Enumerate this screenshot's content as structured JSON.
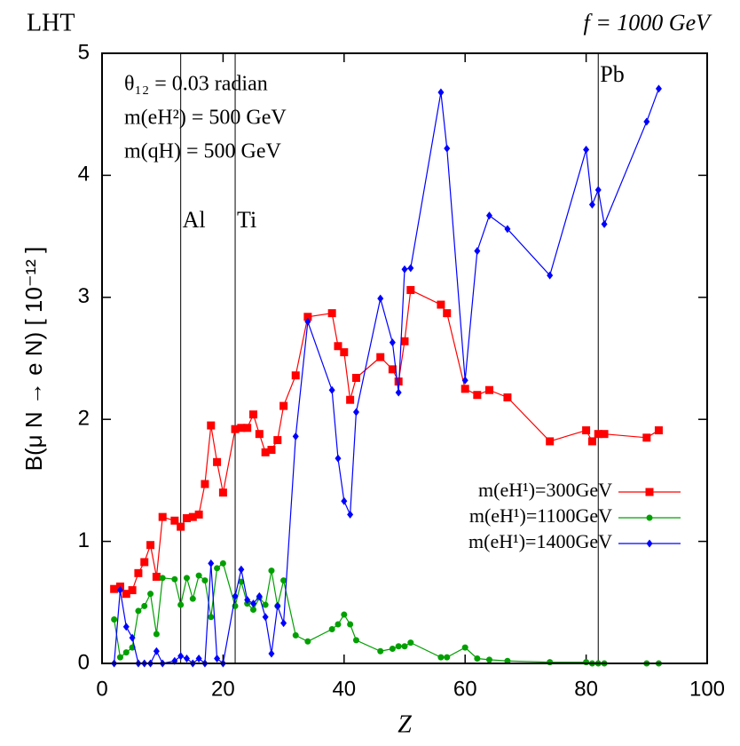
{
  "chart_data": {
    "type": "line",
    "title_left": "LHT",
    "title_right": "f = 1000 GeV",
    "xlabel": "Z",
    "ylabel": "B(μ N → e N) [ 10⁻¹² ]",
    "annotations": [
      "θ₁₂ = 0.03 radian",
      "m(eH²) = 500 GeV",
      "m(qH) = 500 GeV"
    ],
    "vlines": [
      {
        "label": "Al",
        "x": 13
      },
      {
        "label": "Ti",
        "x": 22
      },
      {
        "label": "Pb",
        "x": 82
      }
    ],
    "xlim": [
      0,
      100
    ],
    "xticks": [
      0,
      20,
      40,
      60,
      80,
      100
    ],
    "ylim": [
      0,
      5
    ],
    "yticks": [
      0,
      1,
      2,
      3,
      4,
      5
    ],
    "x": [
      2,
      3,
      4,
      5,
      6,
      7,
      8,
      9,
      10,
      12,
      13,
      14,
      15,
      16,
      17,
      18,
      19,
      20,
      22,
      23,
      24,
      25,
      26,
      27,
      28,
      29,
      30,
      32,
      34,
      38,
      39,
      40,
      41,
      42,
      46,
      48,
      49,
      50,
      51,
      56,
      57,
      60,
      62,
      64,
      67,
      74,
      80,
      81,
      82,
      83,
      90,
      92
    ],
    "series": [
      {
        "name": "m(eH¹)=300GeV",
        "color": "#ff0000",
        "marker": "square",
        "values": [
          0.61,
          0.63,
          0.57,
          0.6,
          0.74,
          0.83,
          0.97,
          0.71,
          1.2,
          1.17,
          1.12,
          1.19,
          1.2,
          1.22,
          1.47,
          1.95,
          1.65,
          1.4,
          1.92,
          1.93,
          1.93,
          2.04,
          1.88,
          1.73,
          1.75,
          1.83,
          2.11,
          2.36,
          2.84,
          2.87,
          2.6,
          2.55,
          2.16,
          2.34,
          2.51,
          2.41,
          2.31,
          2.64,
          3.06,
          2.94,
          2.87,
          2.25,
          2.2,
          2.24,
          2.18,
          1.82,
          1.91,
          1.82,
          1.88,
          1.88,
          1.85,
          1.91
        ]
      },
      {
        "name": "m(eH¹)=1100GeV",
        "color": "#00a000",
        "marker": "circle",
        "values": [
          0.36,
          0.05,
          0.09,
          0.13,
          0.43,
          0.47,
          0.57,
          0.24,
          0.7,
          0.69,
          0.48,
          0.7,
          0.53,
          0.72,
          0.68,
          0.38,
          0.78,
          0.82,
          0.47,
          0.67,
          0.49,
          0.44,
          0.54,
          0.48,
          0.76,
          0.47,
          0.68,
          0.23,
          0.18,
          0.28,
          0.32,
          0.4,
          0.32,
          0.19,
          0.1,
          0.12,
          0.14,
          0.14,
          0.17,
          0.05,
          0.05,
          0.13,
          0.04,
          0.03,
          0.02,
          0.01,
          0.01,
          0,
          0,
          0,
          0,
          0
        ]
      },
      {
        "name": "m(eH¹)=1400GeV",
        "color": "#0000ff",
        "marker": "diamond",
        "values": [
          0,
          0.6,
          0.3,
          0.21,
          0,
          0,
          0,
          0.1,
          0,
          0.02,
          0.06,
          0.04,
          0,
          0.04,
          0,
          0.82,
          0.04,
          0,
          0.55,
          0.77,
          0.52,
          0.49,
          0.55,
          0.38,
          0.08,
          0.47,
          0.33,
          1.86,
          2.8,
          2.24,
          1.68,
          1.33,
          1.22,
          2.06,
          2.99,
          2.63,
          2.22,
          3.23,
          3.24,
          4.68,
          4.22,
          2.32,
          3.38,
          3.67,
          3.56,
          3.18,
          4.21,
          3.76,
          3.88,
          3.6,
          4.44,
          4.71
        ]
      }
    ]
  }
}
